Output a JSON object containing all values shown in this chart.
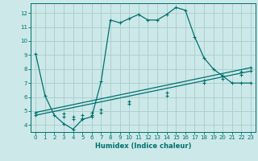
{
  "xlabel": "Humidex (Indice chaleur)",
  "ylabel": "",
  "background_color": "#cce8e8",
  "grid_color": "#aacccc",
  "line_color": "#007070",
  "xlim": [
    -0.5,
    23.5
  ],
  "ylim": [
    3.5,
    12.7
  ],
  "xticks": [
    0,
    1,
    2,
    3,
    4,
    5,
    6,
    7,
    8,
    9,
    10,
    11,
    12,
    13,
    14,
    15,
    16,
    17,
    18,
    19,
    20,
    21,
    22,
    23
  ],
  "yticks": [
    4,
    5,
    6,
    7,
    8,
    9,
    10,
    11,
    12
  ],
  "curve1_x": [
    0,
    1,
    2,
    3,
    4,
    5,
    6,
    7,
    8,
    9,
    10,
    11,
    12,
    13,
    14,
    15,
    16,
    17,
    18,
    19,
    20,
    21,
    22,
    23
  ],
  "curve1_y": [
    9.1,
    6.1,
    4.7,
    4.1,
    3.7,
    4.4,
    4.6,
    7.1,
    11.5,
    11.3,
    11.6,
    11.9,
    11.5,
    11.5,
    11.9,
    12.4,
    12.2,
    10.3,
    8.8,
    8.0,
    7.5,
    7.0,
    7.0,
    7.0
  ],
  "curve2_x": [
    0,
    23
  ],
  "curve2_y": [
    4.9,
    8.1
  ],
  "curve3_x": [
    0,
    23
  ],
  "curve3_y": [
    4.7,
    7.85
  ],
  "curve2_markers_x": [
    0,
    3,
    4,
    5,
    6,
    7,
    10,
    14,
    18,
    20,
    22,
    23
  ],
  "curve2_markers_y": [
    4.9,
    4.8,
    4.6,
    4.7,
    4.9,
    5.1,
    5.7,
    6.3,
    7.2,
    7.5,
    7.8,
    8.1
  ],
  "curve3_markers_x": [
    0,
    3,
    4,
    5,
    6,
    7,
    10,
    14,
    18,
    20,
    22,
    23
  ],
  "curve3_markers_y": [
    4.7,
    4.6,
    4.4,
    4.5,
    4.7,
    4.9,
    5.5,
    6.1,
    7.0,
    7.3,
    7.6,
    7.85
  ]
}
